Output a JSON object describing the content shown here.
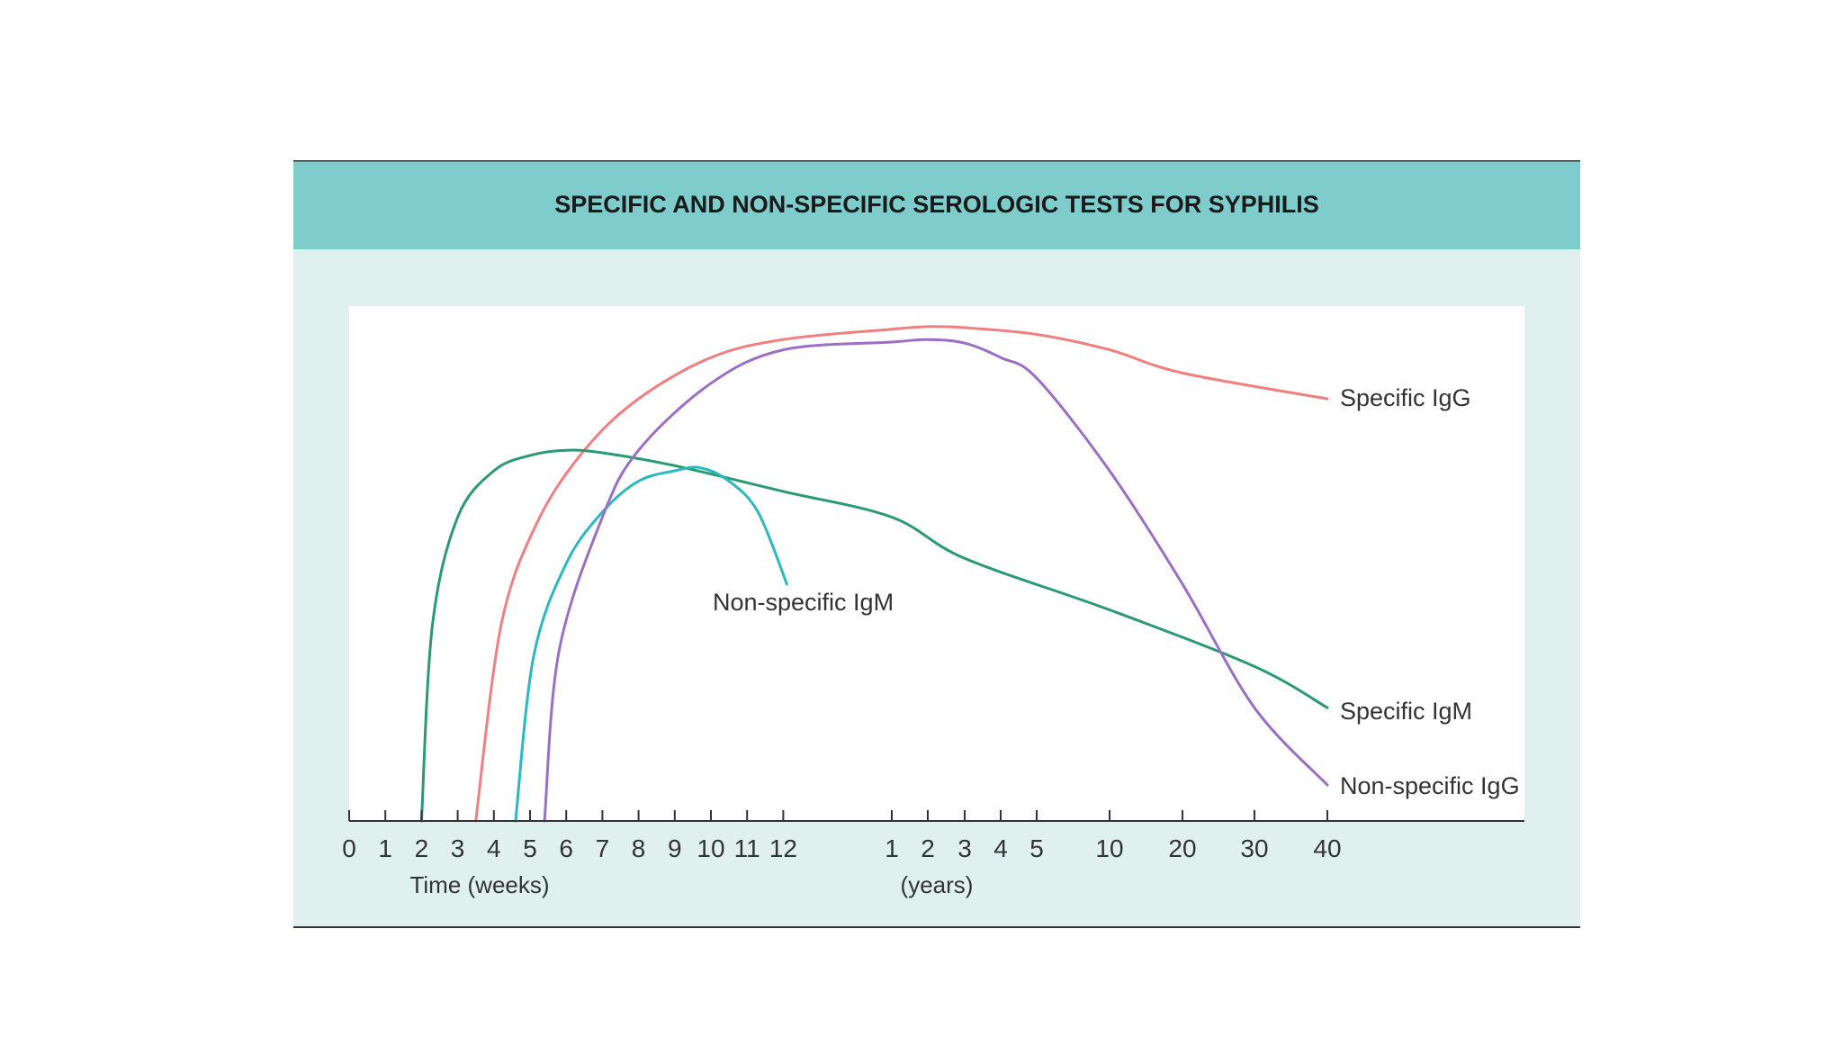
{
  "chart_data": {
    "type": "line",
    "title": "SPECIFIC AND NON-SPECIFIC SEROLOGIC TESTS FOR SYPHILIS",
    "xlabel_weeks": "Time (weeks)",
    "xlabel_years": "(years)",
    "x_ticks_weeks": [
      "0",
      "1",
      "2",
      "3",
      "4",
      "5",
      "6",
      "7",
      "8",
      "9",
      "10",
      "11",
      "12"
    ],
    "x_ticks_years": [
      "1",
      "2",
      "3",
      "4",
      "5",
      "10",
      "20",
      "30",
      "40"
    ],
    "grid": false,
    "colors": {
      "header_band": "#7fcccc",
      "panel_bg": "#dff0ef",
      "plot_bg": "#ffffff",
      "axis": "#333333"
    },
    "series": [
      {
        "name": "Specific IgG",
        "color": "#f07f7f",
        "points": [
          [
            3.5,
            0
          ],
          [
            4.2,
            0.38
          ],
          [
            5.2,
            0.58
          ],
          [
            6.5,
            0.72
          ],
          [
            8,
            0.82
          ],
          [
            10,
            0.9
          ],
          [
            12,
            0.935
          ],
          [
            1,
            0.955
          ],
          [
            2,
            0.96
          ],
          [
            3,
            0.958
          ],
          [
            5,
            0.945
          ],
          [
            10,
            0.915
          ],
          [
            20,
            0.87
          ],
          [
            40,
            0.82
          ]
        ]
      },
      {
        "name": "Specific IgM",
        "color": "#2a9a72",
        "points": [
          [
            2,
            0
          ],
          [
            2.3,
            0.38
          ],
          [
            3,
            0.59
          ],
          [
            4,
            0.68
          ],
          [
            5,
            0.71
          ],
          [
            6,
            0.72
          ],
          [
            7,
            0.715
          ],
          [
            9,
            0.69
          ],
          [
            12,
            0.64
          ],
          [
            1,
            0.59
          ],
          [
            3,
            0.51
          ],
          [
            10,
            0.41
          ],
          [
            30,
            0.3
          ],
          [
            40,
            0.22
          ]
        ]
      },
      {
        "name": "Non-specific IgM",
        "color": "#2bb8c0",
        "points": [
          [
            4.6,
            0
          ],
          [
            5.1,
            0.32
          ],
          [
            6,
            0.5
          ],
          [
            7,
            0.6
          ],
          [
            8,
            0.66
          ],
          [
            9,
            0.68
          ],
          [
            9.7,
            0.686
          ],
          [
            10.5,
            0.66
          ],
          [
            11.3,
            0.6
          ],
          [
            12.1,
            0.46
          ]
        ]
      },
      {
        "name": "Non-specific IgG",
        "color": "#9b6fc4",
        "points": [
          [
            5.4,
            0
          ],
          [
            5.8,
            0.33
          ],
          [
            7,
            0.59
          ],
          [
            8,
            0.72
          ],
          [
            10,
            0.85
          ],
          [
            12,
            0.915
          ],
          [
            1,
            0.93
          ],
          [
            2,
            0.935
          ],
          [
            3,
            0.928
          ],
          [
            4,
            0.9
          ],
          [
            5,
            0.86
          ],
          [
            10,
            0.68
          ],
          [
            20,
            0.46
          ],
          [
            30,
            0.22
          ],
          [
            40,
            0.07
          ]
        ]
      }
    ],
    "labels": {
      "specific_igg": "Specific IgG",
      "specific_igm": "Specific IgM",
      "nonspecific_igm": "Non-specific IgM",
      "nonspecific_igg": "Non-specific IgG"
    }
  }
}
